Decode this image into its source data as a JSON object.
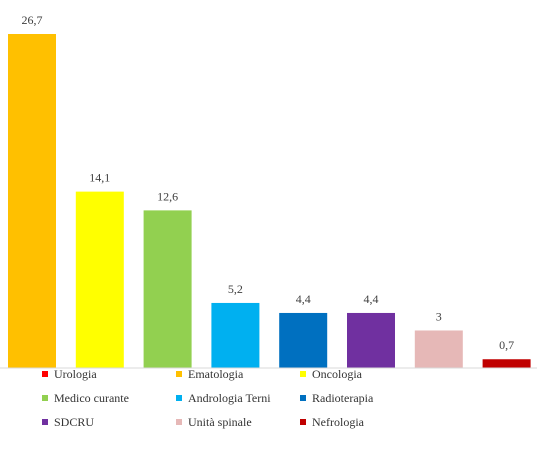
{
  "chart_data": {
    "type": "bar",
    "title": "",
    "xlabel": "",
    "ylabel": "",
    "ylim": [
      0,
      26.7
    ],
    "grid": false,
    "legend_position": "bottom",
    "value_labels": [
      "26,7",
      "14,1",
      "12,6",
      "5,2",
      "4,4",
      "4,4",
      "3",
      "0,7"
    ],
    "series": [
      {
        "name": "Urologia",
        "color": "#ff0000",
        "bar_index": null,
        "value": null
      },
      {
        "name": "Ematologia",
        "color": "#ffc000",
        "bar_index": 0,
        "value": 26.7
      },
      {
        "name": "Oncologia",
        "color": "#ffff00",
        "bar_index": 1,
        "value": 14.1
      },
      {
        "name": "Medico curante",
        "color": "#92d050",
        "bar_index": 2,
        "value": 12.6
      },
      {
        "name": "Andrologia Terni",
        "color": "#00b0f0",
        "bar_index": 3,
        "value": 5.2
      },
      {
        "name": "Radioterapia",
        "color": "#0070c0",
        "bar_index": 4,
        "value": 4.4
      },
      {
        "name": "SDCRU",
        "color": "#7030a0",
        "bar_index": 5,
        "value": 4.4
      },
      {
        "name": "Unità spinale",
        "color": "#e6b8b7",
        "bar_index": 6,
        "value": 3
      },
      {
        "name": "Nefrologia",
        "color": "#c00000",
        "bar_index": 7,
        "value": 0.7
      }
    ]
  },
  "legend": {
    "items": [
      {
        "label": "Urologia",
        "color": "#ff0000"
      },
      {
        "label": "Ematologia",
        "color": "#ffc000"
      },
      {
        "label": "Oncologia",
        "color": "#ffff00"
      },
      {
        "label": "Medico curante",
        "color": "#92d050"
      },
      {
        "label": "Andrologia Terni",
        "color": "#00b0f0"
      },
      {
        "label": "Radioterapia",
        "color": "#0070c0"
      },
      {
        "label": "SDCRU",
        "color": "#7030a0"
      },
      {
        "label": "Unità spinale",
        "color": "#e6b8b7"
      },
      {
        "label": "Nefrologia",
        "color": "#c00000"
      }
    ]
  }
}
